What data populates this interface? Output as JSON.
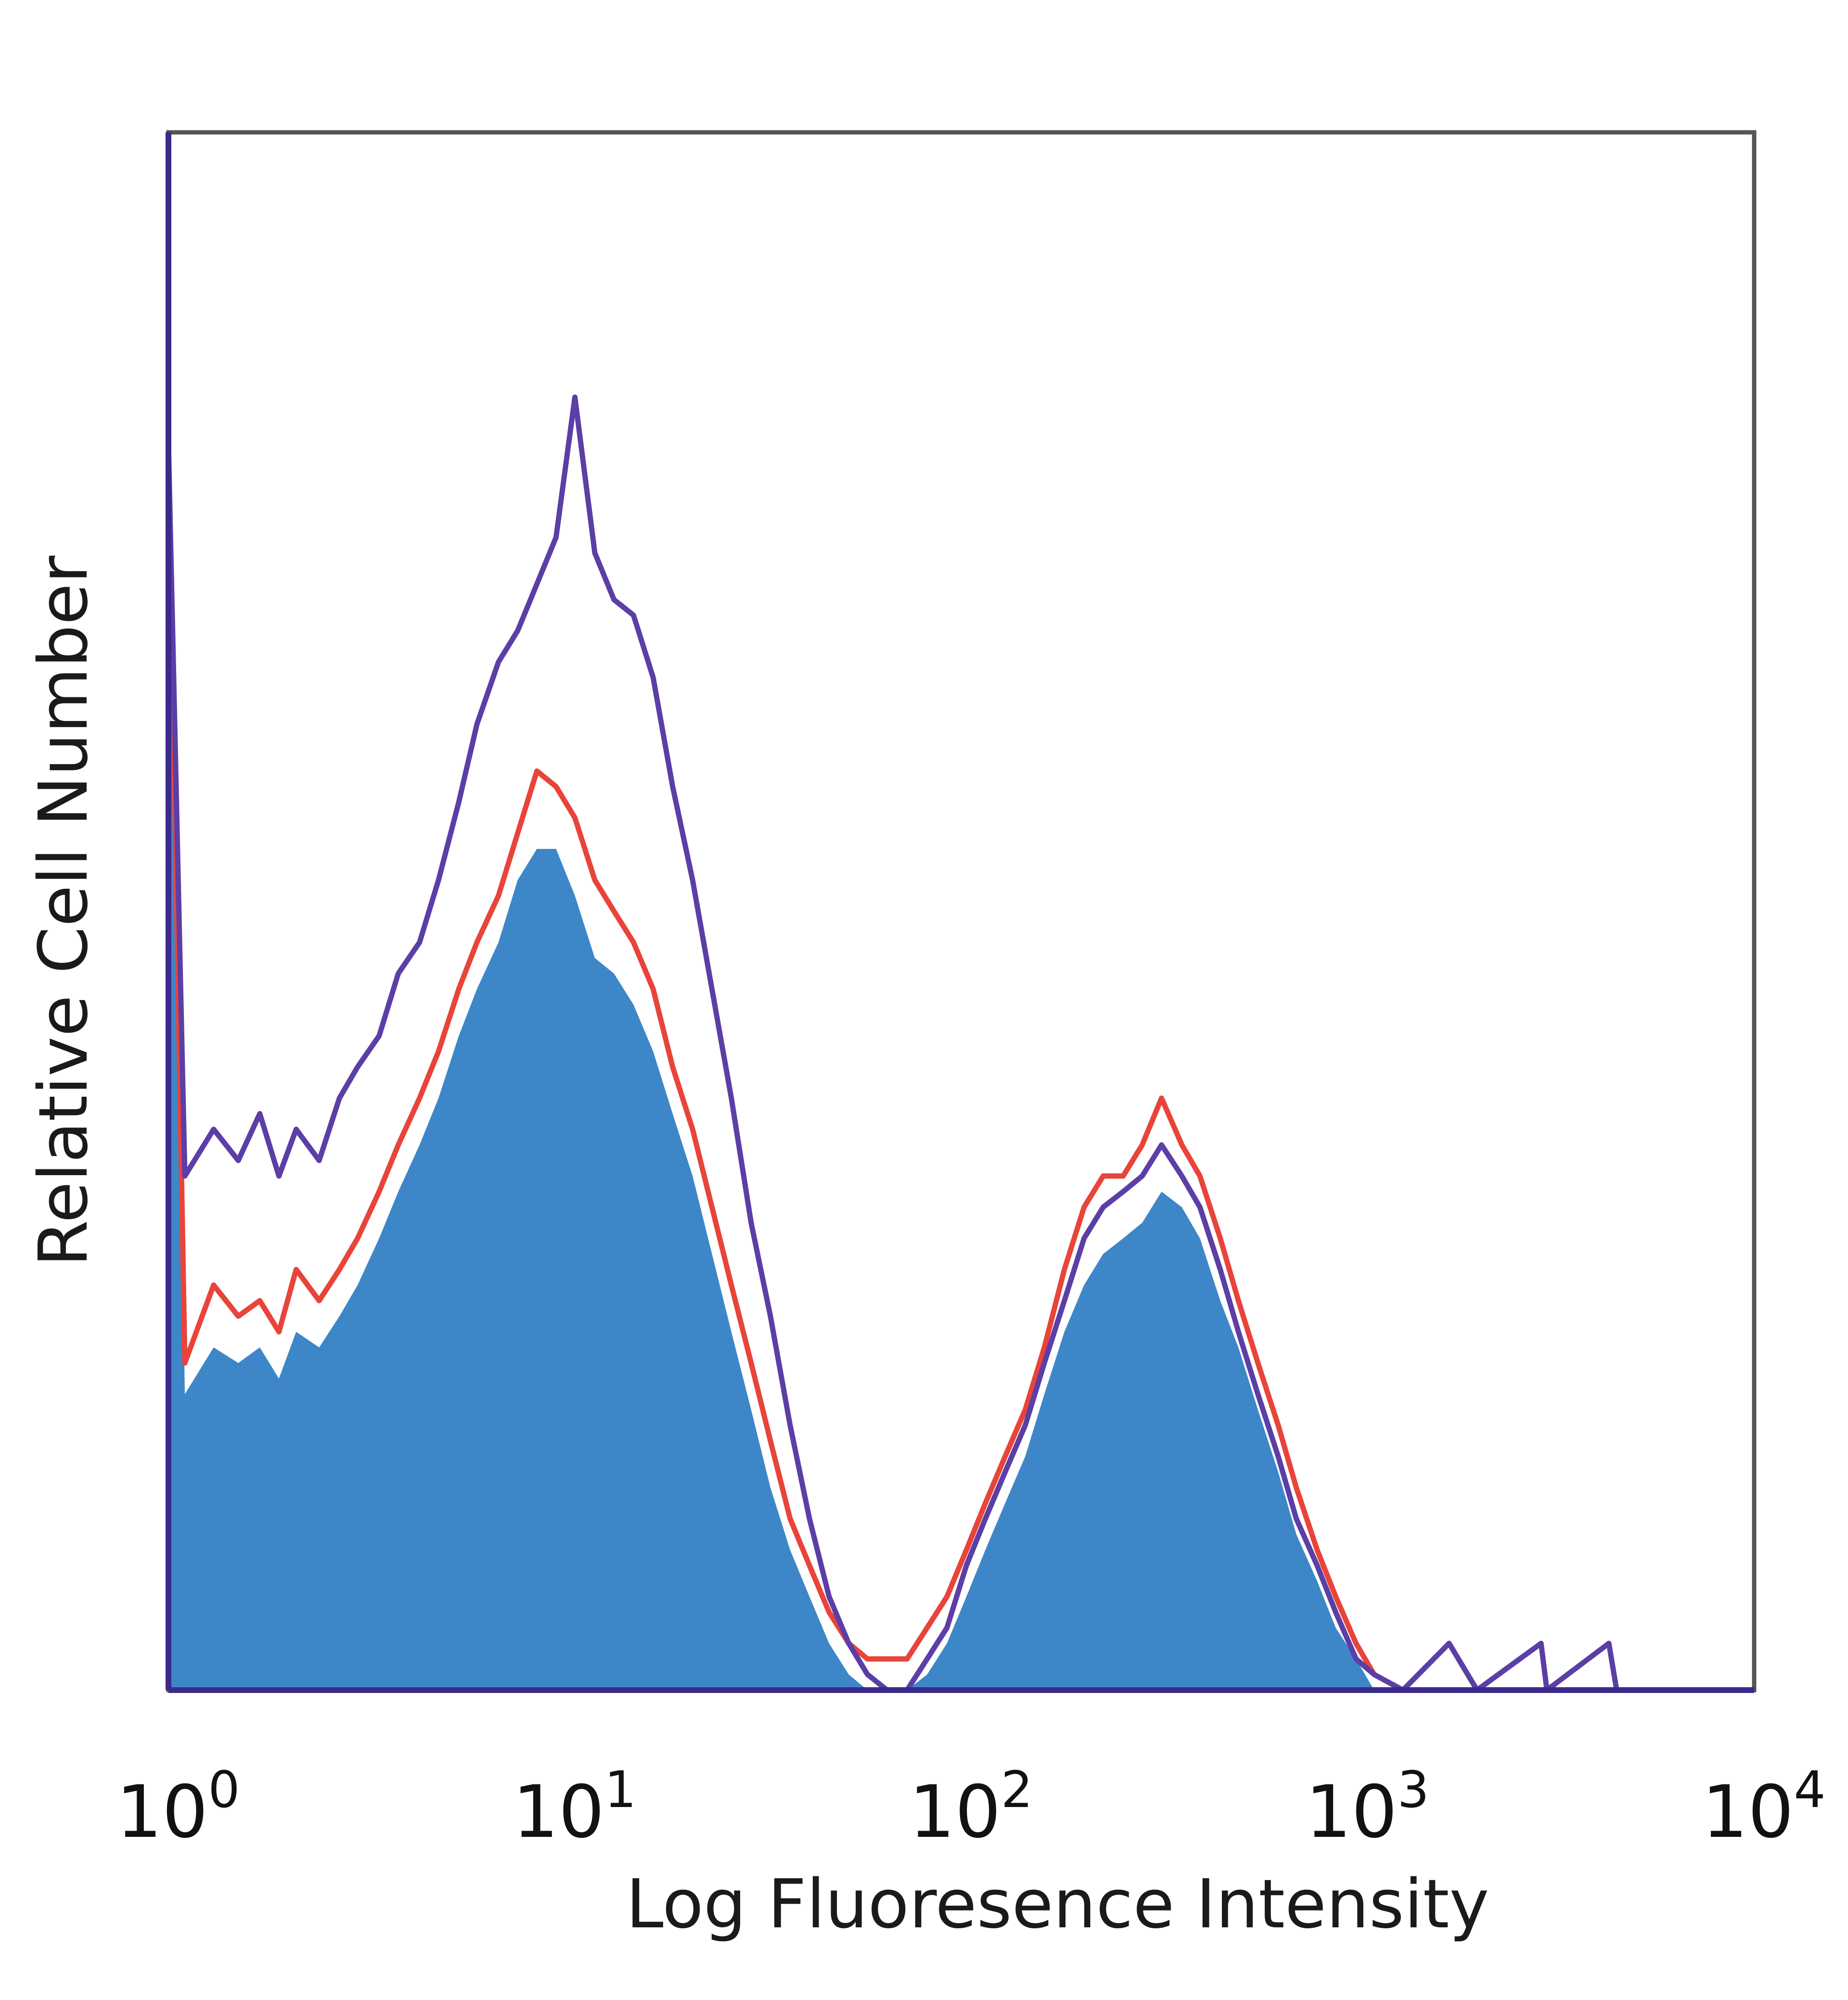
{
  "chart_data": {
    "type": "area",
    "title": "",
    "xlabel": "Log Fluoresence Intensity",
    "ylabel": "Relative Cell Number",
    "x_scale": "log",
    "xlim": [
      1,
      10000
    ],
    "ylim": [
      0,
      100
    ],
    "x_ticks": [
      {
        "base": "10",
        "exp": "0"
      },
      {
        "base": "10",
        "exp": "1"
      },
      {
        "base": "10",
        "exp": "2"
      },
      {
        "base": "10",
        "exp": "3"
      },
      {
        "base": "10",
        "exp": "4"
      }
    ],
    "grid": false,
    "legend": "none",
    "series": [
      {
        "style": "filled",
        "color": "#3d87c9",
        "points": [
          [
            1.0,
            80
          ],
          [
            1.1,
            19
          ],
          [
            1.3,
            22
          ],
          [
            1.5,
            21
          ],
          [
            1.7,
            22
          ],
          [
            1.9,
            20
          ],
          [
            2.1,
            23
          ],
          [
            2.4,
            22
          ],
          [
            2.7,
            24
          ],
          [
            3.0,
            26
          ],
          [
            3.4,
            29
          ],
          [
            3.8,
            32
          ],
          [
            4.3,
            35
          ],
          [
            4.8,
            38
          ],
          [
            5.4,
            42
          ],
          [
            6.0,
            45
          ],
          [
            6.8,
            48
          ],
          [
            7.6,
            52
          ],
          [
            8.5,
            54
          ],
          [
            9.5,
            54
          ],
          [
            10.6,
            51
          ],
          [
            11.9,
            47
          ],
          [
            13.3,
            46
          ],
          [
            14.9,
            44
          ],
          [
            16.7,
            41
          ],
          [
            18.7,
            37
          ],
          [
            21,
            33
          ],
          [
            23.5,
            28
          ],
          [
            26.3,
            23
          ],
          [
            29.5,
            18
          ],
          [
            33,
            13
          ],
          [
            37,
            9
          ],
          [
            41.4,
            6
          ],
          [
            46.4,
            3
          ],
          [
            52,
            1
          ],
          [
            58,
            0
          ],
          [
            65,
            0
          ],
          [
            73,
            0
          ],
          [
            82,
            1
          ],
          [
            92,
            3
          ],
          [
            103,
            6
          ],
          [
            115,
            9
          ],
          [
            129,
            12
          ],
          [
            145,
            15
          ],
          [
            162,
            19
          ],
          [
            182,
            23
          ],
          [
            204,
            26
          ],
          [
            228,
            28
          ],
          [
            256,
            29
          ],
          [
            286,
            30
          ],
          [
            320,
            32
          ],
          [
            360,
            31
          ],
          [
            400,
            29
          ],
          [
            450,
            25
          ],
          [
            500,
            22
          ],
          [
            560,
            18
          ],
          [
            630,
            14
          ],
          [
            700,
            10
          ],
          [
            790,
            7
          ],
          [
            880,
            4
          ],
          [
            990,
            2
          ],
          [
            1100,
            0
          ],
          [
            1300,
            0
          ],
          [
            2000,
            0
          ],
          [
            10000,
            0
          ]
        ]
      },
      {
        "style": "line",
        "color": "#e8443a",
        "points": [
          [
            1.0,
            80
          ],
          [
            1.1,
            21
          ],
          [
            1.3,
            26
          ],
          [
            1.5,
            24
          ],
          [
            1.7,
            25
          ],
          [
            1.9,
            23
          ],
          [
            2.1,
            27
          ],
          [
            2.4,
            25
          ],
          [
            2.7,
            27
          ],
          [
            3.0,
            29
          ],
          [
            3.4,
            32
          ],
          [
            3.8,
            35
          ],
          [
            4.3,
            38
          ],
          [
            4.8,
            41
          ],
          [
            5.4,
            45
          ],
          [
            6.0,
            48
          ],
          [
            6.8,
            51
          ],
          [
            7.6,
            55
          ],
          [
            8.5,
            59
          ],
          [
            9.5,
            58
          ],
          [
            10.6,
            56
          ],
          [
            11.9,
            52
          ],
          [
            13.3,
            50
          ],
          [
            14.9,
            48
          ],
          [
            16.7,
            45
          ],
          [
            18.7,
            40
          ],
          [
            21,
            36
          ],
          [
            23.5,
            31
          ],
          [
            26.3,
            26
          ],
          [
            29.5,
            21
          ],
          [
            33,
            16
          ],
          [
            37,
            11
          ],
          [
            41.4,
            8
          ],
          [
            46.4,
            5
          ],
          [
            52,
            3
          ],
          [
            58,
            2
          ],
          [
            65,
            2
          ],
          [
            73,
            2
          ],
          [
            82,
            4
          ],
          [
            92,
            6
          ],
          [
            103,
            9
          ],
          [
            115,
            12
          ],
          [
            129,
            15
          ],
          [
            145,
            18
          ],
          [
            162,
            22
          ],
          [
            182,
            27
          ],
          [
            204,
            31
          ],
          [
            228,
            33
          ],
          [
            256,
            33
          ],
          [
            286,
            35
          ],
          [
            320,
            38
          ],
          [
            360,
            35
          ],
          [
            400,
            33
          ],
          [
            450,
            29
          ],
          [
            500,
            25
          ],
          [
            560,
            21
          ],
          [
            630,
            17
          ],
          [
            700,
            13
          ],
          [
            790,
            9
          ],
          [
            880,
            6
          ],
          [
            990,
            3
          ],
          [
            1100,
            1
          ],
          [
            1300,
            0
          ],
          [
            2000,
            0
          ],
          [
            10000,
            0
          ]
        ]
      },
      {
        "style": "line",
        "color": "#5b3ea6",
        "points": [
          [
            1.0,
            80
          ],
          [
            1.1,
            33
          ],
          [
            1.3,
            36
          ],
          [
            1.5,
            34
          ],
          [
            1.7,
            37
          ],
          [
            1.9,
            33
          ],
          [
            2.1,
            36
          ],
          [
            2.4,
            34
          ],
          [
            2.7,
            38
          ],
          [
            3.0,
            40
          ],
          [
            3.4,
            42
          ],
          [
            3.8,
            46
          ],
          [
            4.3,
            48
          ],
          [
            4.8,
            52
          ],
          [
            5.4,
            57
          ],
          [
            6.0,
            62
          ],
          [
            6.8,
            66
          ],
          [
            7.6,
            68
          ],
          [
            8.5,
            71
          ],
          [
            9.5,
            74
          ],
          [
            10.6,
            83
          ],
          [
            11.9,
            73
          ],
          [
            13.3,
            70
          ],
          [
            14.9,
            69
          ],
          [
            16.7,
            65
          ],
          [
            18.7,
            58
          ],
          [
            21,
            52
          ],
          [
            23.5,
            45
          ],
          [
            26.3,
            38
          ],
          [
            29.5,
            30
          ],
          [
            33,
            24
          ],
          [
            37,
            17
          ],
          [
            41.4,
            11
          ],
          [
            46.4,
            6
          ],
          [
            52,
            3
          ],
          [
            58,
            1
          ],
          [
            65,
            0
          ],
          [
            73,
            0
          ],
          [
            82,
            2
          ],
          [
            92,
            4
          ],
          [
            103,
            8
          ],
          [
            115,
            11
          ],
          [
            129,
            14
          ],
          [
            145,
            17
          ],
          [
            162,
            21
          ],
          [
            182,
            25
          ],
          [
            204,
            29
          ],
          [
            228,
            31
          ],
          [
            256,
            32
          ],
          [
            286,
            33
          ],
          [
            320,
            35
          ],
          [
            360,
            33
          ],
          [
            400,
            31
          ],
          [
            450,
            27
          ],
          [
            500,
            23
          ],
          [
            560,
            19
          ],
          [
            630,
            15
          ],
          [
            700,
            11
          ],
          [
            790,
            8
          ],
          [
            880,
            5
          ],
          [
            990,
            2
          ],
          [
            1100,
            1
          ],
          [
            1300,
            0
          ],
          [
            1700,
            3
          ],
          [
            2000,
            0
          ],
          [
            2900,
            3
          ],
          [
            3000,
            0
          ],
          [
            4300,
            3
          ],
          [
            4500,
            0
          ],
          [
            10000,
            0
          ]
        ]
      }
    ]
  }
}
